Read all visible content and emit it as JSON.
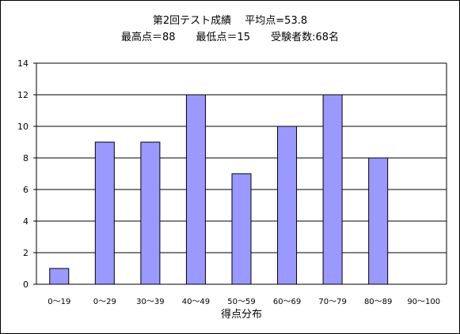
{
  "chart_data": {
    "type": "bar",
    "title": "第2回テスト成績　 平均点=53.8",
    "subtitle": "最高点＝88　　最低点＝15　　受験者数:68名",
    "xlabel": "得点分布",
    "ylabel": "",
    "categories": [
      "0～19",
      "0～29",
      "30～39",
      "40～49",
      "50～59",
      "60～69",
      "70～79",
      "80～89",
      "90～100"
    ],
    "values": [
      1,
      9,
      9,
      12,
      7,
      10,
      12,
      8,
      0
    ],
    "ylim": [
      0,
      14
    ],
    "yticks": [
      0,
      2,
      4,
      6,
      8,
      10,
      12,
      14
    ],
    "grid": true,
    "legend": "none",
    "bar_color": "#9999ff"
  }
}
